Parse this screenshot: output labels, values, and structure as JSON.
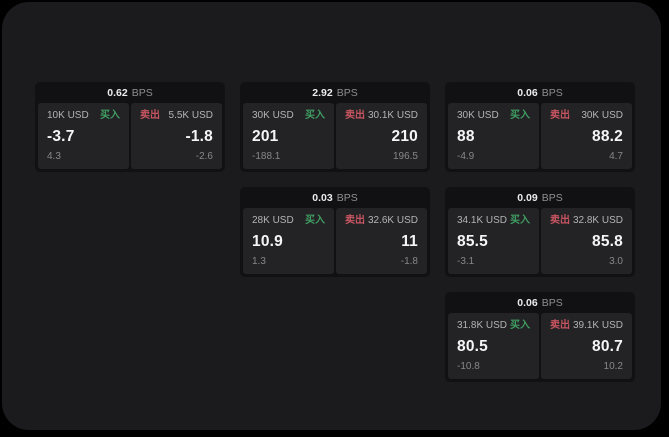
{
  "colors": {
    "page_bg": "#000000",
    "panel_bg": "#1b1b1d",
    "card_bg": "#111113",
    "subpanel_bg": "#232325",
    "buy_green": "#3f9e62",
    "sell_red": "#c75561"
  },
  "labels": {
    "bps": "BPS",
    "buy": "买入",
    "sell": "卖出"
  },
  "cards": [
    {
      "col": 0,
      "row": 0,
      "bps": "0.62",
      "buy": {
        "amount": "10K USD",
        "value": "-3.7",
        "sub": "4.3"
      },
      "sell": {
        "amount": "5.5K USD",
        "value": "-1.8",
        "sub": "-2.6"
      }
    },
    {
      "col": 1,
      "row": 0,
      "bps": "2.92",
      "buy": {
        "amount": "30K USD",
        "value": "201",
        "sub": "-188.1"
      },
      "sell": {
        "amount": "30.1K USD",
        "value": "210",
        "sub": "196.5"
      }
    },
    {
      "col": 2,
      "row": 0,
      "bps": "0.06",
      "buy": {
        "amount": "30K USD",
        "value": "88",
        "sub": "-4.9"
      },
      "sell": {
        "amount": "30K USD",
        "value": "88.2",
        "sub": "4.7"
      }
    },
    {
      "col": 1,
      "row": 1,
      "bps": "0.03",
      "buy": {
        "amount": "28K USD",
        "value": "10.9",
        "sub": "1.3"
      },
      "sell": {
        "amount": "32.6K USD",
        "value": "11",
        "sub": "-1.8"
      }
    },
    {
      "col": 2,
      "row": 1,
      "bps": "0.09",
      "buy": {
        "amount": "34.1K USD",
        "value": "85.5",
        "sub": "-3.1"
      },
      "sell": {
        "amount": "32.8K USD",
        "value": "85.8",
        "sub": "3.0"
      }
    },
    {
      "col": 2,
      "row": 2,
      "bps": "0.06",
      "buy": {
        "amount": "31.8K USD",
        "value": "80.5",
        "sub": "-10.8"
      },
      "sell": {
        "amount": "39.1K USD",
        "value": "80.7",
        "sub": "10.2"
      }
    }
  ]
}
